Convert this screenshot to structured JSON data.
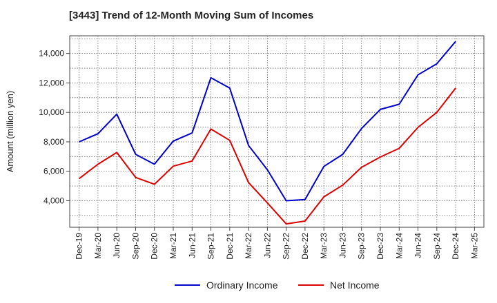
{
  "chart_data": {
    "type": "line",
    "title": "[3443]  Trend of 12-Month Moving Sum of Incomes",
    "ylabel": "Amount (million yen)",
    "xlabel": "",
    "categories": [
      "Dec-19",
      "Mar-20",
      "Jun-20",
      "Sep-20",
      "Dec-20",
      "Mar-21",
      "Jun-21",
      "Sep-21",
      "Dec-21",
      "Mar-22",
      "Jun-22",
      "Sep-22",
      "Dec-22",
      "Mar-23",
      "Jun-23",
      "Sep-23",
      "Dec-23",
      "Mar-24",
      "Jun-24",
      "Sep-24",
      "Dec-24",
      "Mar-25"
    ],
    "ylim": [
      2200,
      15200
    ],
    "yticks": [
      4000,
      6000,
      8000,
      10000,
      12000,
      14000
    ],
    "ytick_labels": [
      "4,000",
      "6,000",
      "8,000",
      "10,000",
      "12,000",
      "14,000"
    ],
    "grid": true,
    "legend_position": "bottom",
    "series": [
      {
        "name": "Ordinary Income",
        "color": "#0000cc",
        "values": [
          8000,
          8550,
          9880,
          7150,
          6480,
          8050,
          8600,
          12350,
          11650,
          7750,
          6100,
          4000,
          4080,
          6330,
          7150,
          8900,
          10200,
          10550,
          12550,
          13300,
          14820,
          null
        ]
      },
      {
        "name": "Net Income",
        "color": "#dd0000",
        "values": [
          5500,
          6480,
          7280,
          5580,
          5120,
          6350,
          6700,
          8870,
          8100,
          5230,
          3850,
          2430,
          2620,
          4260,
          5060,
          6270,
          6970,
          7560,
          8980,
          10000,
          11650,
          null
        ]
      }
    ]
  }
}
